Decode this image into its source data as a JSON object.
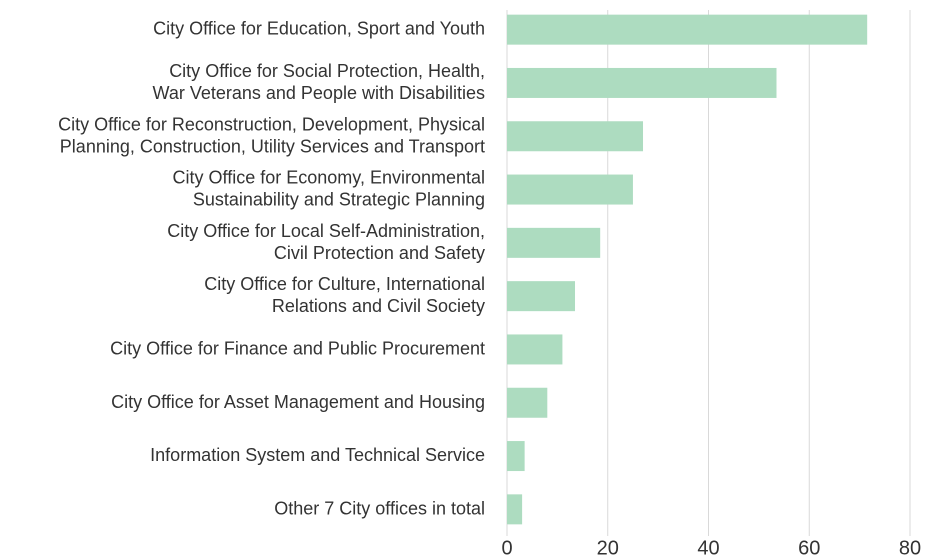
{
  "chart_data": {
    "type": "hbar",
    "categories": [
      "City Office for Education, Sport and Youth",
      "City Office for Social Protection, Health,\nWar Veterans and People with Disabilities",
      "City Office for Reconstruction, Development, Physical\nPlanning, Construction, Utility Services and Transport",
      "City Office for Economy, Environmental\nSustainability and Strategic Planning",
      "City Office for Local Self-Administration,\nCivil Protection and Safety",
      "City Office for Culture, International\nRelations and Civil Society",
      "City Office for Finance and Public Procurement",
      "City Office for Asset Management and Housing",
      "Information System and Technical Service",
      "Other 7 City offices in total"
    ],
    "values": [
      71.5,
      53.5,
      27,
      25,
      18.5,
      13.5,
      11,
      8,
      3.5,
      3
    ],
    "color": "#addcc0",
    "xlim": [
      0,
      80
    ],
    "xticks": [
      0,
      20,
      40,
      60,
      80
    ],
    "grid": true
  }
}
